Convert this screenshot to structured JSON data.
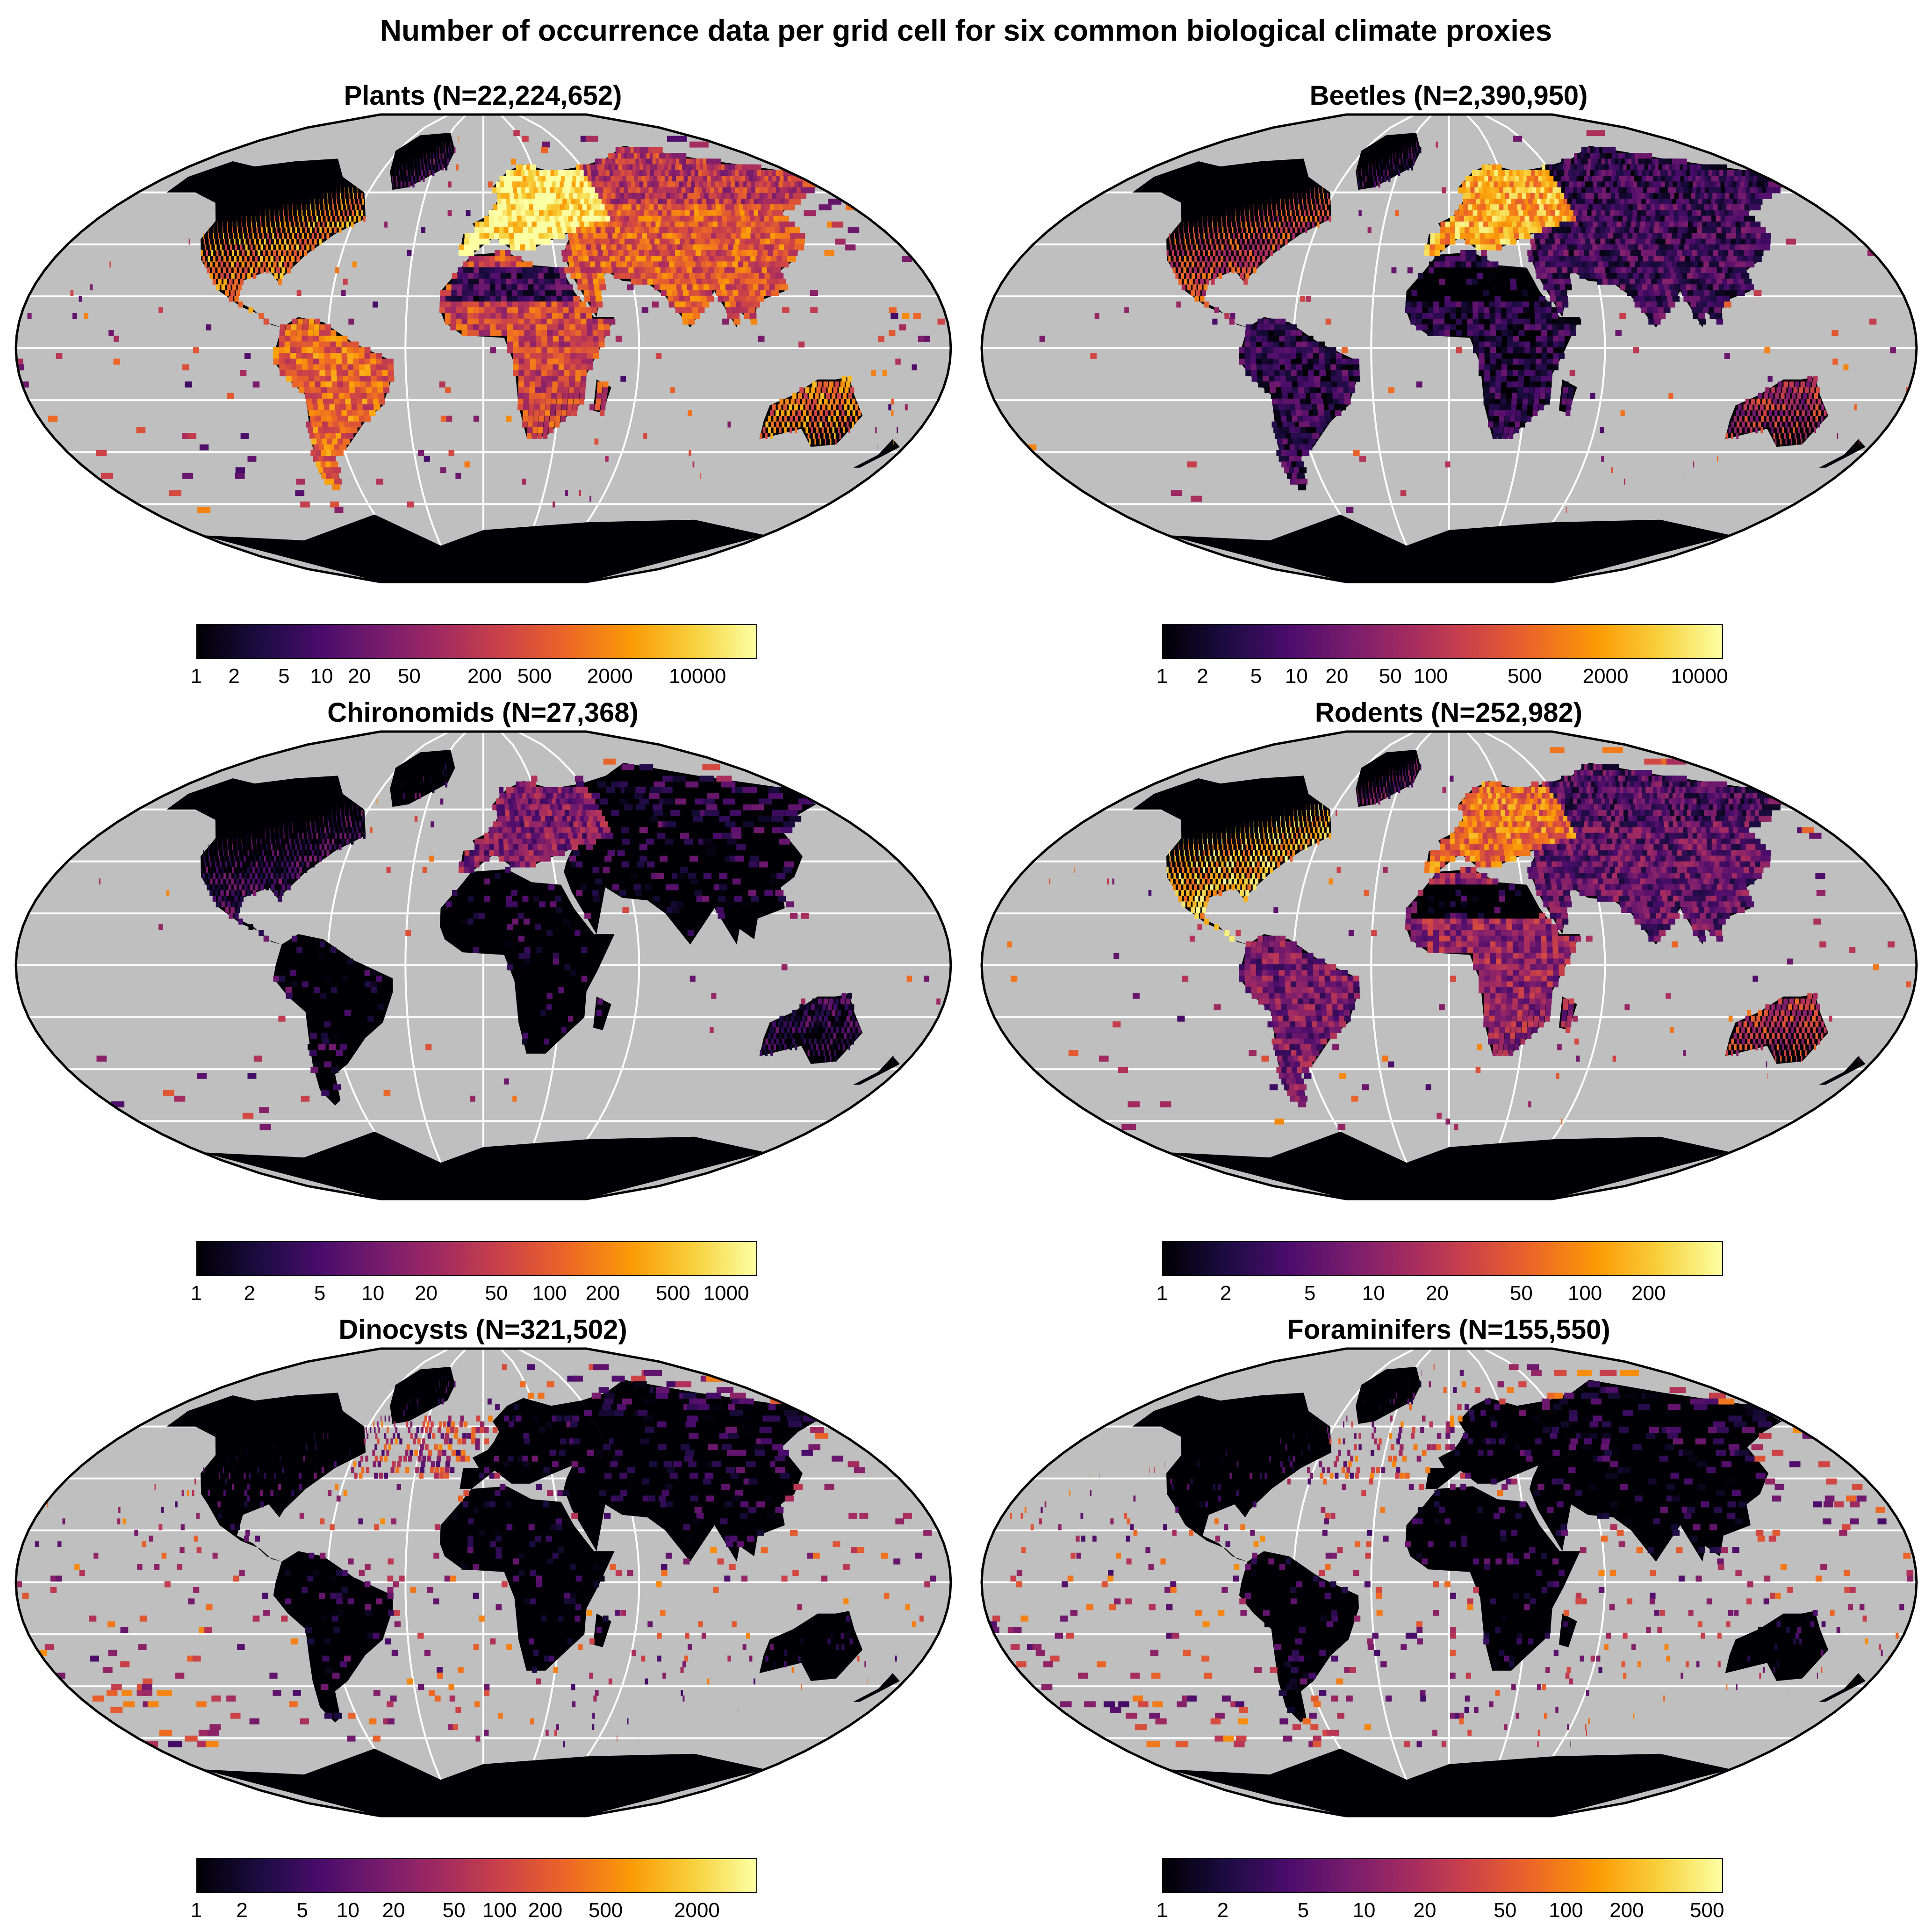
{
  "figure_title": "Number of occurrence data per grid cell for six common biological climate proxies",
  "colors": {
    "ocean": "#bfbfbf",
    "graticule": "#ffffff",
    "outline": "#000000",
    "land_base": "#000004",
    "palette": [
      "#000004",
      "#1b0c41",
      "#4a0c6b",
      "#781c6d",
      "#a52c60",
      "#cf4446",
      "#ed6925",
      "#fb9b06",
      "#f7d13d",
      "#fcffa4"
    ]
  },
  "panels": [
    {
      "title": "Plants (N=22,224,652)",
      "colorbar_ticks": [
        "1",
        "2",
        "5",
        "10",
        "20",
        "50",
        "200",
        "500",
        "2000",
        "10000"
      ],
      "colorbar_tick_values": [
        1,
        2,
        5,
        10,
        20,
        50,
        200,
        500,
        2000,
        10000
      ],
      "scale_max": 30000,
      "intensity": {
        "na": 0.72,
        "eu": 0.95,
        "as": 0.62,
        "af": 0.55,
        "sa": 0.65,
        "au": 0.68,
        "sahara": 0.18,
        "ocean_spots": 0.4
      }
    },
    {
      "title": "Beetles (N=2,390,950)",
      "colorbar_ticks": [
        "1",
        "2",
        "5",
        "10",
        "20",
        "50",
        "100",
        "500",
        "2000",
        "10000"
      ],
      "colorbar_tick_values": [
        1,
        2,
        5,
        10,
        20,
        50,
        100,
        500,
        2000,
        10000
      ],
      "scale_max": 15000,
      "intensity": {
        "na": 0.55,
        "eu": 0.8,
        "as": 0.2,
        "af": 0.12,
        "sa": 0.15,
        "au": 0.45,
        "sahara": 0.02,
        "ocean_spots": 0.18
      }
    },
    {
      "title": "Chironomids (N=27,368)",
      "colorbar_ticks": [
        "1",
        "2",
        "5",
        "10",
        "20",
        "50",
        "100",
        "200",
        "500",
        "1000"
      ],
      "colorbar_tick_values": [
        1,
        2,
        5,
        10,
        20,
        50,
        100,
        200,
        500,
        1000
      ],
      "scale_max": 1500,
      "intensity": {
        "na": 0.18,
        "eu": 0.35,
        "as": 0.05,
        "af": 0.03,
        "sa": 0.05,
        "au": 0.15,
        "sahara": 0.0,
        "ocean_spots": 0.12
      }
    },
    {
      "title": "Rodents (N=252,982)",
      "colorbar_ticks": [
        "1",
        "2",
        "5",
        "10",
        "20",
        "50",
        "100",
        "200"
      ],
      "colorbar_tick_values": [
        1,
        2,
        5,
        10,
        20,
        50,
        100,
        200
      ],
      "scale_max": 450,
      "intensity": {
        "na": 0.82,
        "eu": 0.68,
        "as": 0.28,
        "af": 0.4,
        "sa": 0.33,
        "au": 0.5,
        "sahara": 0.05,
        "ocean_spots": 0.2
      }
    },
    {
      "title": "Dinocysts (N=321,502)",
      "colorbar_ticks": [
        "1",
        "2",
        "5",
        "10",
        "20",
        "50",
        "100",
        "200",
        "500",
        "2000"
      ],
      "colorbar_tick_values": [
        1,
        2,
        5,
        10,
        20,
        50,
        100,
        200,
        500,
        2000
      ],
      "scale_max": 5000,
      "intensity": {
        "na": 0.05,
        "eu": 0.05,
        "as": 0.03,
        "af": 0.02,
        "sa": 0.04,
        "au": 0.03,
        "sahara": 0.0,
        "ocean_spots": 0.45,
        "coast": 0.55,
        "north_atlantic": 0.6
      }
    },
    {
      "title": "Foraminifers (N=155,550)",
      "colorbar_ticks": [
        "1",
        "2",
        "5",
        "10",
        "20",
        "50",
        "100",
        "200",
        "500"
      ],
      "colorbar_tick_values": [
        1,
        2,
        5,
        10,
        20,
        50,
        100,
        200,
        500
      ],
      "scale_max": 600,
      "intensity": {
        "na": 0.04,
        "eu": 0.04,
        "as": 0.03,
        "af": 0.02,
        "sa": 0.03,
        "au": 0.02,
        "sahara": 0.0,
        "ocean_spots": 0.6,
        "coast": 0.55,
        "north_atlantic": 0.3
      }
    }
  ]
}
